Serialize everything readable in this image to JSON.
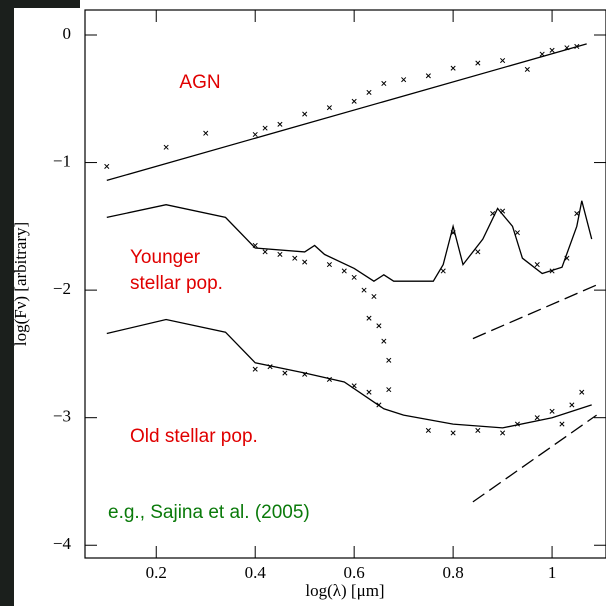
{
  "chart_data": {
    "type": "line",
    "xlabel": "log(λ) [μm]",
    "ylabel": "log(Fν) [arbitrary]",
    "xlim": [
      0.056,
      1.109
    ],
    "ylim": [
      -4.1,
      0.196
    ],
    "xticks": [
      0.2,
      0.4,
      0.6,
      0.8,
      1
    ],
    "yticks": [
      0,
      {
        "value": -1,
        "label": "−1"
      },
      {
        "value": -2,
        "label": "−2"
      },
      {
        "value": -3,
        "label": "−3"
      },
      {
        "value": -4,
        "label": "−4"
      }
    ],
    "annotations": [
      {
        "text": "AGN",
        "color": "#e00000"
      },
      {
        "text": "Younger",
        "color": "#e00000"
      },
      {
        "text": "stellar pop.",
        "color": "#e00000"
      },
      {
        "text": "Old stellar pop.",
        "color": "#e00000"
      },
      {
        "text": "e.g., Sajina et al. (2005)",
        "color": "#0a7a0a"
      }
    ],
    "series": [
      {
        "style": "solid",
        "color": "#000000",
        "x": [
          0.1,
          1.07
        ],
        "values": [
          -1.14,
          -0.07
        ]
      },
      {
        "style": "solid",
        "color": "#000000",
        "x": [
          0.1,
          0.22,
          0.34,
          0.4,
          0.5,
          0.52,
          0.54,
          0.6,
          0.64,
          0.66,
          0.68,
          0.76,
          0.78,
          0.8,
          0.82,
          0.86,
          0.89,
          0.92,
          0.94,
          0.98,
          1.02,
          1.05,
          1.06,
          1.08
        ],
        "values": [
          -1.43,
          -1.33,
          -1.43,
          -1.67,
          -1.7,
          -1.65,
          -1.72,
          -1.83,
          -1.93,
          -1.88,
          -1.93,
          -1.93,
          -1.8,
          -1.5,
          -1.8,
          -1.6,
          -1.36,
          -1.5,
          -1.75,
          -1.87,
          -1.82,
          -1.5,
          -1.3,
          -1.6
        ]
      },
      {
        "style": "solid",
        "color": "#000000",
        "x": [
          0.1,
          0.22,
          0.34,
          0.4,
          0.5,
          0.58,
          0.66,
          0.7,
          0.8,
          0.9,
          1.0,
          1.08
        ],
        "values": [
          -2.34,
          -2.23,
          -2.33,
          -2.57,
          -2.65,
          -2.72,
          -2.93,
          -2.98,
          -3.05,
          -3.08,
          -3.0,
          -2.9
        ]
      },
      {
        "style": "dashed",
        "color": "#000000",
        "x": [
          0.84,
          1.09
        ],
        "values": [
          -2.38,
          -1.96
        ]
      },
      {
        "style": "dashed",
        "color": "#000000",
        "x": [
          0.84,
          1.09
        ],
        "values": [
          -3.66,
          -2.98
        ]
      },
      {
        "style": "points",
        "color": "#000000",
        "x": [
          0.1,
          0.22,
          0.3,
          0.4,
          0.42,
          0.45,
          0.5,
          0.55,
          0.6,
          0.63,
          0.66,
          0.7,
          0.75,
          0.8,
          0.85,
          0.9,
          0.95,
          0.98,
          1.0,
          1.03,
          1.05
        ],
        "values": [
          -1.03,
          -0.88,
          -0.77,
          -0.78,
          -0.73,
          -0.7,
          -0.62,
          -0.57,
          -0.52,
          -0.45,
          -0.38,
          -0.35,
          -0.32,
          -0.26,
          -0.22,
          -0.2,
          -0.27,
          -0.15,
          -0.12,
          -0.1,
          -0.09
        ]
      },
      {
        "style": "points",
        "color": "#000000",
        "x": [
          0.4,
          0.42,
          0.45,
          0.48,
          0.5,
          0.55,
          0.58,
          0.6,
          0.62,
          0.63,
          0.64,
          0.65,
          0.66,
          0.67,
          0.78,
          0.8,
          0.85,
          0.88,
          0.9,
          0.93,
          0.97,
          1.0,
          1.03,
          1.05
        ],
        "values": [
          -1.65,
          -1.7,
          -1.72,
          -1.75,
          -1.78,
          -1.8,
          -1.85,
          -1.9,
          -2.0,
          -2.22,
          -2.05,
          -2.28,
          -2.4,
          -2.55,
          -1.85,
          -1.55,
          -1.7,
          -1.4,
          -1.38,
          -1.55,
          -1.8,
          -1.85,
          -1.75,
          -1.4
        ]
      },
      {
        "style": "points",
        "color": "#000000",
        "x": [
          0.4,
          0.43,
          0.46,
          0.5,
          0.55,
          0.6,
          0.63,
          0.65,
          0.67,
          0.75,
          0.8,
          0.85,
          0.9,
          0.93,
          0.97,
          1.0,
          1.02,
          1.04,
          1.06
        ],
        "values": [
          -2.62,
          -2.6,
          -2.65,
          -2.66,
          -2.7,
          -2.75,
          -2.8,
          -2.9,
          -2.78,
          -3.1,
          -3.12,
          -3.1,
          -3.12,
          -3.05,
          -3.0,
          -2.95,
          -3.05,
          -2.9,
          -2.8
        ]
      }
    ]
  }
}
